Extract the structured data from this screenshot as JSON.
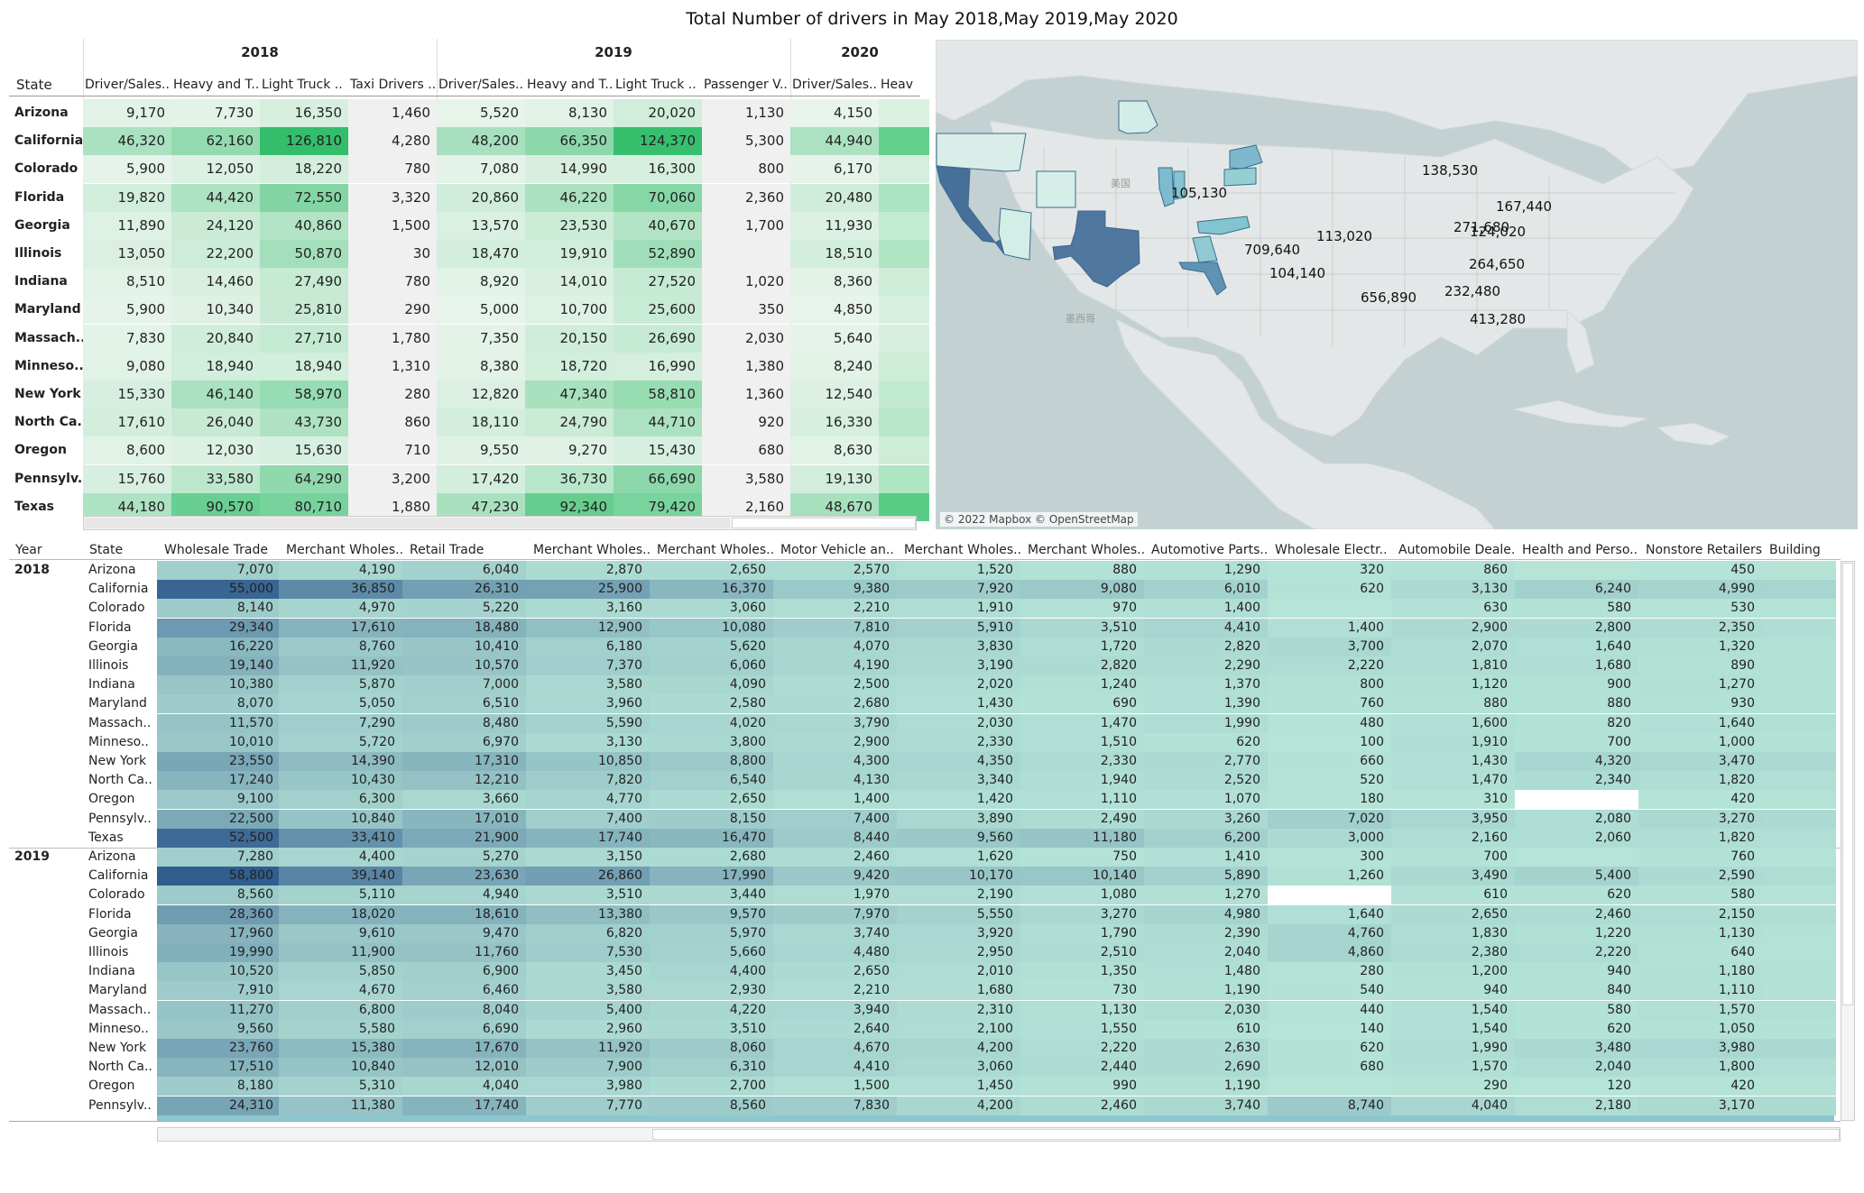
{
  "title": "Total Number of drivers in May 2018,May 2019,May 2020",
  "colors": {
    "green_low": "#eff7f1",
    "green_high": "#2fbc68",
    "teal_low": "#b6e5d8",
    "teal_high": "#2f5b8e",
    "map_low": "#cfeae6",
    "map_high": "#47729a",
    "map_bg": "#c3d1d2",
    "land": "#e4e7e7"
  },
  "top_table": {
    "state_header": "State",
    "years": [
      "2018",
      "2019",
      "2020"
    ],
    "columns": [
      "Driver/Sales..",
      "Heavy and T..",
      "Light Truck ..",
      "Taxi Drivers ..",
      "Driver/Sales..",
      "Heavy and T..",
      "Light Truck ..",
      "Passenger V..",
      "Driver/Sales..",
      "Heav"
    ],
    "rows": [
      {
        "state": "Arizona",
        "values": [
          "9,170",
          "7,730",
          "16,350",
          "1,460",
          "5,520",
          "8,130",
          "20,020",
          "1,130",
          "4,150",
          ""
        ]
      },
      {
        "state": "California",
        "values": [
          "46,320",
          "62,160",
          "126,810",
          "4,280",
          "48,200",
          "66,350",
          "124,370",
          "5,300",
          "44,940",
          ""
        ]
      },
      {
        "state": "Colorado",
        "values": [
          "5,900",
          "12,050",
          "18,220",
          "780",
          "7,080",
          "14,990",
          "16,300",
          "800",
          "6,170",
          ""
        ]
      },
      {
        "state": "Florida",
        "values": [
          "19,820",
          "44,420",
          "72,550",
          "3,320",
          "20,860",
          "46,220",
          "70,060",
          "2,360",
          "20,480",
          ""
        ]
      },
      {
        "state": "Georgia",
        "values": [
          "11,890",
          "24,120",
          "40,860",
          "1,500",
          "13,570",
          "23,530",
          "40,670",
          "1,700",
          "11,930",
          ""
        ]
      },
      {
        "state": "Illinois",
        "values": [
          "13,050",
          "22,200",
          "50,870",
          "30",
          "18,470",
          "19,910",
          "52,890",
          "",
          "18,510",
          ""
        ]
      },
      {
        "state": "Indiana",
        "values": [
          "8,510",
          "14,460",
          "27,490",
          "780",
          "8,920",
          "14,010",
          "27,520",
          "1,020",
          "8,360",
          ""
        ]
      },
      {
        "state": "Maryland",
        "values": [
          "5,900",
          "10,340",
          "25,810",
          "290",
          "5,000",
          "10,700",
          "25,600",
          "350",
          "4,850",
          ""
        ]
      },
      {
        "state": "Massach..",
        "values": [
          "7,830",
          "20,840",
          "27,710",
          "1,780",
          "7,350",
          "20,150",
          "26,690",
          "2,030",
          "5,640",
          ""
        ]
      },
      {
        "state": "Minneso..",
        "values": [
          "9,080",
          "18,940",
          "18,940",
          "1,310",
          "8,380",
          "18,720",
          "16,990",
          "1,380",
          "8,240",
          ""
        ]
      },
      {
        "state": "New York",
        "values": [
          "15,330",
          "46,140",
          "58,970",
          "280",
          "12,820",
          "47,340",
          "58,810",
          "1,360",
          "12,540",
          ""
        ]
      },
      {
        "state": "North Ca..",
        "values": [
          "17,610",
          "26,040",
          "43,730",
          "860",
          "18,110",
          "24,790",
          "44,710",
          "920",
          "16,330",
          ""
        ]
      },
      {
        "state": "Oregon",
        "values": [
          "8,600",
          "12,030",
          "15,630",
          "710",
          "9,550",
          "9,270",
          "15,430",
          "680",
          "8,630",
          ""
        ]
      },
      {
        "state": "Pennsylv..",
        "values": [
          "15,760",
          "33,580",
          "64,290",
          "3,200",
          "17,420",
          "36,730",
          "66,690",
          "3,580",
          "19,130",
          ""
        ]
      },
      {
        "state": "Texas",
        "values": [
          "44,180",
          "90,570",
          "80,710",
          "1,880",
          "47,230",
          "92,340",
          "79,420",
          "2,160",
          "48,670",
          ""
        ]
      }
    ]
  },
  "map": {
    "attribution": "© 2022 Mapbox © OpenStreetMap",
    "country_labels": [
      "美国",
      "墨西哥"
    ],
    "states": [
      {
        "name": "Oregon",
        "value": 105130,
        "label": "105,130"
      },
      {
        "name": "California",
        "value": 709640,
        "label": "709,640"
      },
      {
        "name": "Arizona",
        "value": 104140,
        "label": "104,140"
      },
      {
        "name": "Colorado",
        "value": 113020,
        "label": "113,020"
      },
      {
        "name": "Texas",
        "value": 656890,
        "label": "656,890"
      },
      {
        "name": "Minnesota",
        "value": 138530,
        "label": "138,530"
      },
      {
        "name": "Illinois/Indiana",
        "value": 271680,
        "label": "271,680"
      },
      {
        "name": "New York",
        "value": 167440,
        "label": "167,440"
      },
      {
        "name": "Pennsylvania",
        "value": 124020,
        "label": "124,020"
      },
      {
        "name": "North Carolina",
        "value": 264650,
        "label": "264,650"
      },
      {
        "name": "Georgia",
        "value": 232480,
        "label": "232,480"
      },
      {
        "name": "Florida",
        "value": 413280,
        "label": "413,280"
      }
    ]
  },
  "bottom_table": {
    "year_header": "Year",
    "state_header": "State",
    "columns": [
      "Wholesale Trade",
      "Merchant Wholes..",
      "Retail Trade",
      "Merchant Wholes..",
      "Merchant Wholes..",
      "Motor Vehicle an..",
      "Merchant Wholes..",
      "Merchant Wholes..",
      "Automotive Parts..",
      "Wholesale Electr..",
      "Automobile Deale..",
      "Health and Perso..",
      "Nonstore Retailers",
      "Building Ma"
    ],
    "groups": [
      {
        "year": "2018",
        "rows": [
          {
            "state": "Arizona",
            "values": [
              "7,070",
              "4,190",
              "6,040",
              "2,870",
              "2,650",
              "2,570",
              "1,520",
              "880",
              "1,290",
              "320",
              "860",
              "",
              "450"
            ]
          },
          {
            "state": "California",
            "values": [
              "55,000",
              "36,850",
              "26,310",
              "25,900",
              "16,370",
              "9,380",
              "7,920",
              "9,080",
              "6,010",
              "620",
              "3,130",
              "6,240",
              "4,990"
            ]
          },
          {
            "state": "Colorado",
            "values": [
              "8,140",
              "4,970",
              "5,220",
              "3,160",
              "3,060",
              "2,210",
              "1,910",
              "970",
              "1,400",
              "",
              "630",
              "580",
              "530"
            ]
          },
          {
            "state": "Florida",
            "values": [
              "29,340",
              "17,610",
              "18,480",
              "12,900",
              "10,080",
              "7,810",
              "5,910",
              "3,510",
              "4,410",
              "1,400",
              "2,900",
              "2,800",
              "2,350"
            ]
          },
          {
            "state": "Georgia",
            "values": [
              "16,220",
              "8,760",
              "10,410",
              "6,180",
              "5,620",
              "4,070",
              "3,830",
              "1,720",
              "2,820",
              "3,700",
              "2,070",
              "1,640",
              "1,320"
            ]
          },
          {
            "state": "Illinois",
            "values": [
              "19,140",
              "11,920",
              "10,570",
              "7,370",
              "6,060",
              "4,190",
              "3,190",
              "2,820",
              "2,290",
              "2,220",
              "1,810",
              "1,680",
              "890"
            ]
          },
          {
            "state": "Indiana",
            "values": [
              "10,380",
              "5,870",
              "7,000",
              "3,580",
              "4,090",
              "2,500",
              "2,020",
              "1,240",
              "1,370",
              "800",
              "1,120",
              "900",
              "1,270"
            ]
          },
          {
            "state": "Maryland",
            "values": [
              "8,070",
              "5,050",
              "6,510",
              "3,960",
              "2,580",
              "2,680",
              "1,430",
              "690",
              "1,390",
              "760",
              "880",
              "880",
              "930"
            ]
          },
          {
            "state": "Massach..",
            "values": [
              "11,570",
              "7,290",
              "8,480",
              "5,590",
              "4,020",
              "3,790",
              "2,030",
              "1,470",
              "1,990",
              "480",
              "1,600",
              "820",
              "1,640"
            ]
          },
          {
            "state": "Minneso..",
            "values": [
              "10,010",
              "5,720",
              "6,970",
              "3,130",
              "3,800",
              "2,900",
              "2,330",
              "1,510",
              "620",
              "100",
              "1,910",
              "700",
              "1,000"
            ]
          },
          {
            "state": "New York",
            "values": [
              "23,550",
              "14,390",
              "17,310",
              "10,850",
              "8,800",
              "4,300",
              "4,350",
              "2,330",
              "2,770",
              "660",
              "1,430",
              "4,320",
              "3,470"
            ]
          },
          {
            "state": "North Ca..",
            "values": [
              "17,240",
              "10,430",
              "12,210",
              "7,820",
              "6,540",
              "4,130",
              "3,340",
              "1,940",
              "2,520",
              "520",
              "1,470",
              "2,340",
              "1,820"
            ]
          },
          {
            "state": "Oregon",
            "values": [
              "9,100",
              "6,300",
              "3,660",
              "4,770",
              "2,650",
              "1,400",
              "1,420",
              "1,110",
              "1,070",
              "180",
              "310",
              "",
              "420"
            ]
          },
          {
            "state": "Pennsylv..",
            "values": [
              "22,500",
              "10,840",
              "17,010",
              "7,400",
              "8,150",
              "7,400",
              "3,890",
              "2,490",
              "3,260",
              "7,020",
              "3,950",
              "2,080",
              "3,270"
            ]
          },
          {
            "state": "Texas",
            "values": [
              "52,500",
              "33,410",
              "21,900",
              "17,740",
              "16,470",
              "8,440",
              "9,560",
              "11,180",
              "6,200",
              "3,000",
              "2,160",
              "2,060",
              "1,820"
            ]
          }
        ]
      },
      {
        "year": "2019",
        "rows": [
          {
            "state": "Arizona",
            "values": [
              "7,280",
              "4,400",
              "5,270",
              "3,150",
              "2,680",
              "2,460",
              "1,620",
              "750",
              "1,410",
              "300",
              "700",
              "",
              "760"
            ]
          },
          {
            "state": "California",
            "values": [
              "58,800",
              "39,140",
              "23,630",
              "26,860",
              "17,990",
              "9,420",
              "10,170",
              "10,140",
              "5,890",
              "1,260",
              "3,490",
              "5,400",
              "2,590"
            ]
          },
          {
            "state": "Colorado",
            "values": [
              "8,560",
              "5,110",
              "4,940",
              "3,510",
              "3,440",
              "1,970",
              "2,190",
              "1,080",
              "1,270",
              "",
              "610",
              "620",
              "580"
            ]
          },
          {
            "state": "Florida",
            "values": [
              "28,360",
              "18,020",
              "18,610",
              "13,380",
              "9,570",
              "7,970",
              "5,550",
              "3,270",
              "4,980",
              "1,640",
              "2,650",
              "2,460",
              "2,150"
            ]
          },
          {
            "state": "Georgia",
            "values": [
              "17,960",
              "9,610",
              "9,470",
              "6,820",
              "5,970",
              "3,740",
              "3,920",
              "1,790",
              "2,390",
              "4,760",
              "1,830",
              "1,220",
              "1,130"
            ]
          },
          {
            "state": "Illinois",
            "values": [
              "19,990",
              "11,900",
              "11,760",
              "7,530",
              "5,660",
              "4,480",
              "2,950",
              "2,510",
              "2,040",
              "4,860",
              "2,380",
              "2,220",
              "640"
            ]
          },
          {
            "state": "Indiana",
            "values": [
              "10,520",
              "5,850",
              "6,900",
              "3,450",
              "4,400",
              "2,650",
              "2,010",
              "1,350",
              "1,480",
              "280",
              "1,200",
              "940",
              "1,180"
            ]
          },
          {
            "state": "Maryland",
            "values": [
              "7,910",
              "4,670",
              "6,460",
              "3,580",
              "2,930",
              "2,210",
              "1,680",
              "730",
              "1,190",
              "540",
              "940",
              "840",
              "1,110"
            ]
          },
          {
            "state": "Massach..",
            "values": [
              "11,270",
              "6,800",
              "8,040",
              "5,400",
              "4,220",
              "3,940",
              "2,310",
              "1,130",
              "2,030",
              "440",
              "1,540",
              "580",
              "1,570"
            ]
          },
          {
            "state": "Minneso..",
            "values": [
              "9,560",
              "5,580",
              "6,690",
              "2,960",
              "3,510",
              "2,640",
              "2,100",
              "1,550",
              "610",
              "140",
              "1,540",
              "620",
              "1,050"
            ]
          },
          {
            "state": "New York",
            "values": [
              "23,760",
              "15,380",
              "17,670",
              "11,920",
              "8,060",
              "4,670",
              "4,200",
              "2,220",
              "2,630",
              "620",
              "1,990",
              "3,480",
              "3,980"
            ]
          },
          {
            "state": "North Ca..",
            "values": [
              "17,510",
              "10,840",
              "12,010",
              "7,900",
              "6,310",
              "4,410",
              "3,060",
              "2,440",
              "2,690",
              "680",
              "1,570",
              "2,040",
              "1,800"
            ]
          },
          {
            "state": "Oregon",
            "values": [
              "8,180",
              "5,310",
              "4,040",
              "3,980",
              "2,700",
              "1,500",
              "1,450",
              "990",
              "1,190",
              "",
              "290",
              "120",
              "420"
            ]
          },
          {
            "state": "Pennsylv..",
            "values": [
              "24,310",
              "11,380",
              "17,740",
              "7,770",
              "8,560",
              "7,830",
              "4,200",
              "2,460",
              "3,740",
              "8,740",
              "4,040",
              "2,180",
              "3,170"
            ]
          }
        ]
      }
    ],
    "white_cells": [
      [
        0,
        12,
        11
      ],
      [
        1,
        2,
        9
      ]
    ]
  }
}
